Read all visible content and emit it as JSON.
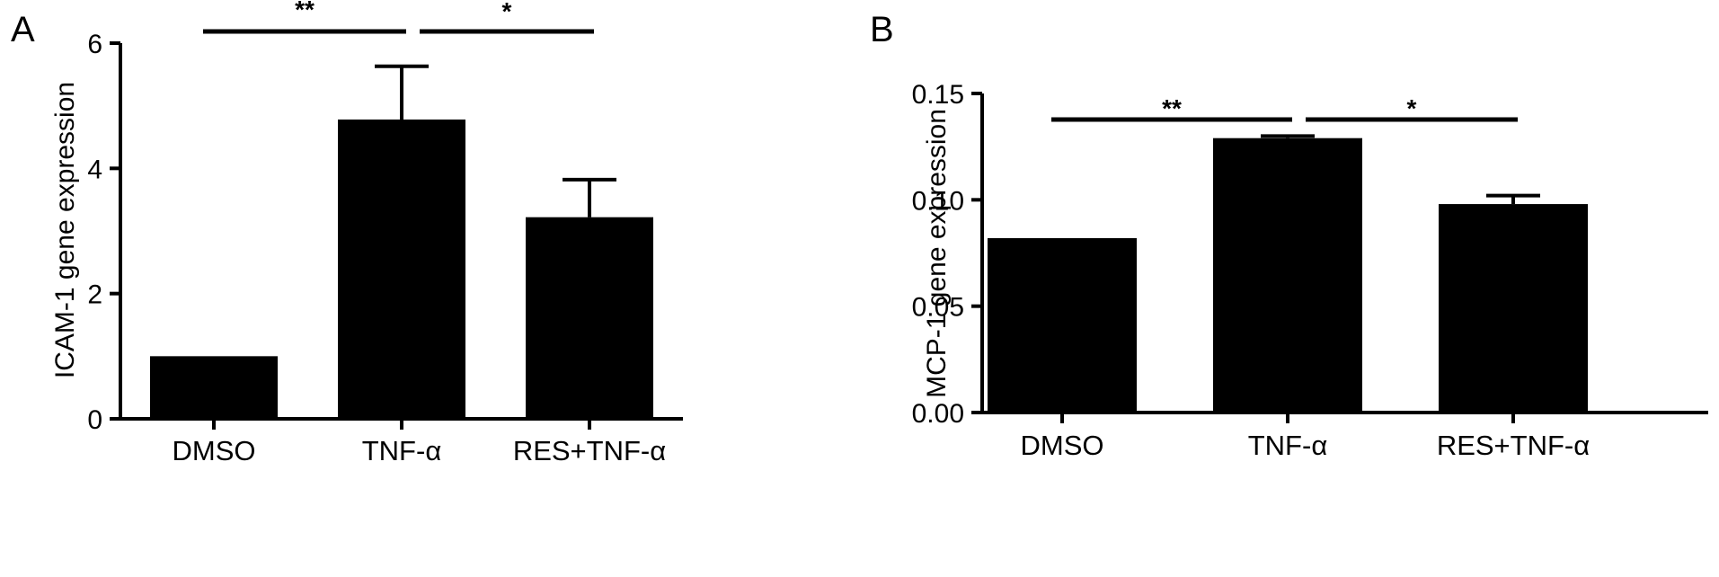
{
  "chart_data": [
    {
      "panel": "A",
      "type": "bar",
      "categories": [
        "DMSO",
        "TNF-α",
        "RES+TNF-α"
      ],
      "values": [
        1.0,
        4.78,
        3.22
      ],
      "errors": [
        0.0,
        0.85,
        0.6
      ],
      "ylabel": "ICAM-1 gene expression",
      "ylim": [
        0,
        6
      ],
      "yticks": [
        "0",
        "2",
        "4",
        "6"
      ],
      "yticks_values": [
        0,
        2,
        4,
        6
      ],
      "grid": false,
      "significance": [
        {
          "from": 0,
          "to": 1,
          "label": "**"
        },
        {
          "from": 1,
          "to": 2,
          "label": "*"
        }
      ]
    },
    {
      "panel": "B",
      "type": "bar",
      "categories": [
        "DMSO",
        "TNF-α",
        "RES+TNF-α"
      ],
      "values": [
        0.082,
        0.129,
        0.098
      ],
      "errors": [
        0.0,
        0.001,
        0.004
      ],
      "ylabel": "MCP-1 gene expression",
      "ylim": [
        0,
        0.15
      ],
      "yticks": [
        "0.00",
        "0.05",
        "0.10",
        "0.15"
      ],
      "yticks_values": [
        0,
        0.05,
        0.1,
        0.15
      ],
      "grid": false,
      "significance": [
        {
          "from": 0,
          "to": 1,
          "label": "**"
        },
        {
          "from": 1,
          "to": 2,
          "label": "*"
        }
      ]
    }
  ]
}
